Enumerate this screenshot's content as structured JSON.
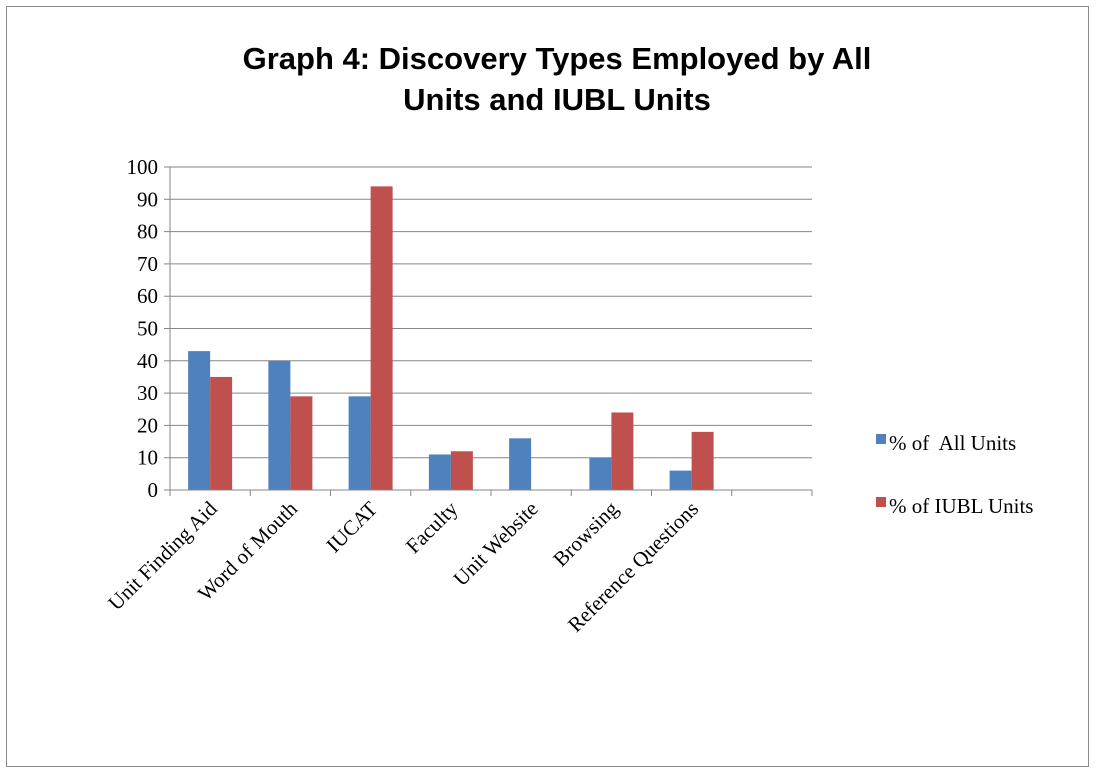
{
  "chart_data": {
    "type": "bar",
    "title_lines": [
      "Graph 4: Discovery Types Employed by All",
      "Units and IUBL Units"
    ],
    "categories": [
      "Unit Finding Aid",
      "Word of Mouth",
      "IUCAT",
      "Faculty",
      "Unit Website",
      "Browsing",
      "Reference Questions",
      ""
    ],
    "series": [
      {
        "name": "% of  All Units",
        "color": "#4f81bd",
        "values": [
          43,
          40,
          29,
          11,
          16,
          10,
          6,
          null
        ]
      },
      {
        "name": "% of IUBL Units",
        "color": "#c0504d",
        "values": [
          35,
          29,
          94,
          12,
          null,
          24,
          18,
          null
        ]
      }
    ],
    "ylim": [
      0,
      100
    ],
    "yticks": [
      0,
      10,
      20,
      30,
      40,
      50,
      60,
      70,
      80,
      90,
      100
    ],
    "grid": true,
    "legend_position": "right",
    "xlabel": "",
    "ylabel": ""
  }
}
